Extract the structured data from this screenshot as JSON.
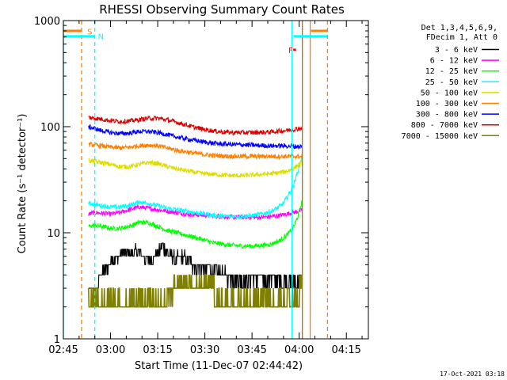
{
  "chart_data": {
    "type": "line",
    "title": "RHESSI Observing Summary Count Rates",
    "xlabel": "Start Time (11-Dec-07 02:44:42)",
    "ylabel": "Count Rate (s⁻¹ detector⁻¹)",
    "y_scale": "log",
    "ylim": [
      1,
      1000
    ],
    "xlim_minutes_after_0245": [
      0,
      97
    ],
    "x_ticks": [
      {
        "label": "02:45",
        "min": 0
      },
      {
        "label": "03:00",
        "min": 15
      },
      {
        "label": "03:15",
        "min": 30
      },
      {
        "label": "03:30",
        "min": 45
      },
      {
        "label": "03:45",
        "min": 60
      },
      {
        "label": "04:00",
        "min": 75
      },
      {
        "label": "04:15",
        "min": 90
      }
    ],
    "y_ticks": [
      {
        "label": "1",
        "value": 1
      },
      {
        "label": "10",
        "value": 10
      },
      {
        "label": "100",
        "value": 100
      },
      {
        "label": "1000",
        "value": 1000
      }
    ],
    "legend_header": [
      "Det 1,3,4,5,6,9,",
      "FDecim 1, Att 0"
    ],
    "legend_position": "right",
    "series": [
      {
        "name": "3 - 6 keV",
        "color": "#000000",
        "x": [
          8.0,
          10.5,
          11.5,
          14.5,
          15.5,
          17.0,
          19.0,
          21.0,
          23.5,
          25.0,
          27.0,
          29.5,
          31.5,
          33.5,
          35.5,
          38.0,
          40.0,
          42.0,
          45.0,
          48.0,
          51.0,
          54.0,
          57.0,
          60.0,
          63.0,
          66.0,
          69.0,
          72.0,
          74.0,
          75.0,
          76.0
        ],
        "values": [
          3,
          3,
          4,
          5,
          6,
          5.5,
          6.5,
          6.3,
          6.8,
          6.0,
          5.5,
          6.2,
          7.5,
          6.3,
          5.6,
          6.0,
          5.3,
          4.8,
          4.6,
          4.4,
          4.0,
          3.8,
          3.6,
          3.7,
          3.6,
          3.8,
          3.5,
          3.5,
          3.4,
          3.8,
          3.5
        ]
      },
      {
        "name": "6 - 12 keV",
        "color": "#ff00ff",
        "x": [
          8,
          10,
          12,
          15,
          18,
          21,
          24,
          27,
          30,
          33,
          36,
          39,
          42,
          45,
          48,
          51,
          54,
          57,
          60,
          63,
          66,
          69,
          71,
          73,
          75,
          76
        ],
        "values": [
          15,
          15.5,
          15.3,
          15,
          15.5,
          16.5,
          17.5,
          17,
          16.5,
          16,
          15.5,
          15,
          14.8,
          14.6,
          14.4,
          14.2,
          14,
          14,
          14,
          14,
          14.2,
          14.6,
          15,
          15.5,
          16,
          16.5
        ]
      },
      {
        "name": "12 - 25 keV",
        "color": "#00ff00",
        "x": [
          8,
          10,
          12,
          15,
          18,
          21,
          24,
          27,
          30,
          33,
          36,
          39,
          42,
          45,
          48,
          51,
          54,
          57,
          60,
          63,
          66,
          69,
          71,
          73,
          74.5,
          75.5,
          76
        ],
        "values": [
          11.5,
          11.8,
          11.5,
          11,
          11,
          11.5,
          12.5,
          12.5,
          11.5,
          10.5,
          10,
          9.5,
          9,
          8.5,
          8,
          7.8,
          7.6,
          7.5,
          7.5,
          7.6,
          7.8,
          8.5,
          9.5,
          11,
          14,
          18,
          20
        ]
      },
      {
        "name": "25 - 50 keV",
        "color": "#00ffff",
        "x": [
          8,
          10,
          12,
          15,
          18,
          21,
          24,
          27,
          30,
          33,
          36,
          39,
          42,
          45,
          48,
          51,
          54,
          57,
          60,
          63,
          66,
          68,
          70,
          72,
          73.5,
          75,
          76
        ],
        "values": [
          19,
          18.5,
          18,
          17.5,
          17.5,
          18,
          19.5,
          19,
          18,
          17,
          16.5,
          16,
          15.5,
          15,
          14.5,
          14.3,
          14.2,
          14.3,
          14.5,
          15,
          16,
          17,
          19,
          24,
          30,
          42,
          55
        ]
      },
      {
        "name": "50 - 100 keV",
        "color": "#dddd00",
        "x": [
          8,
          10,
          12,
          15,
          18,
          21,
          24,
          27,
          30,
          33,
          36,
          39,
          42,
          45,
          48,
          51,
          54,
          57,
          60,
          63,
          66,
          69,
          71,
          73,
          74.5,
          76
        ],
        "values": [
          48,
          47,
          46,
          44,
          42,
          42,
          44,
          46,
          45,
          42,
          40,
          38.5,
          37,
          36,
          35.5,
          35,
          34.5,
          34.5,
          35,
          35.5,
          36,
          37,
          38,
          40,
          43,
          46
        ]
      },
      {
        "name": "100 - 300 keV",
        "color": "#ff7f00",
        "x": [
          8,
          10,
          12,
          15,
          18,
          21,
          24,
          27,
          30,
          33,
          36,
          39,
          42,
          45,
          48,
          51,
          54,
          57,
          60,
          63,
          66,
          69,
          72,
          74,
          76
        ],
        "values": [
          68,
          67,
          66,
          64,
          63,
          64,
          66,
          67,
          66,
          63,
          60,
          58,
          56,
          54.5,
          53.5,
          53,
          52.5,
          52.5,
          52.5,
          52.5,
          52.5,
          52.5,
          52.5,
          52.5,
          52
        ]
      },
      {
        "name": "300 - 800 keV",
        "color": "#0000ff",
        "x": [
          8,
          10,
          12,
          15,
          18,
          21,
          24,
          27,
          30,
          33,
          36,
          39,
          42,
          45,
          48,
          51,
          54,
          57,
          60,
          63,
          66,
          69,
          72,
          74,
          76
        ],
        "values": [
          100,
          96,
          92,
          88,
          86,
          87,
          90,
          90,
          88,
          84,
          80,
          77,
          74,
          71.5,
          69.5,
          68.5,
          68,
          67.5,
          67,
          66.5,
          66,
          66,
          65.5,
          65,
          65
        ]
      },
      {
        "name": "800 - 7000 keV",
        "color": "#dd0000",
        "x": [
          8,
          10,
          12,
          15,
          18,
          21,
          24,
          27,
          30,
          33,
          36,
          39,
          42,
          45,
          48,
          51,
          54,
          57,
          60,
          63,
          66,
          69,
          72,
          74,
          76
        ],
        "values": [
          122,
          120,
          118,
          114,
          112,
          113,
          116,
          120,
          120,
          116,
          110,
          104,
          98,
          94,
          91,
          89,
          88,
          88,
          88,
          88.5,
          89,
          91,
          93,
          95,
          97
        ]
      },
      {
        "name": "7000 - 15000 keV",
        "color": "#7f7f00",
        "x": [
          8,
          30,
          33,
          48,
          50,
          55,
          60,
          66,
          70,
          74,
          75,
          76
        ],
        "values": [
          2,
          2,
          2.5,
          2.5,
          2,
          2,
          2,
          2,
          2,
          2,
          2.5,
          2.5
        ]
      }
    ],
    "annotations": [
      {
        "text": "S",
        "color": "#ff7f00",
        "x_min": 7.6,
        "y": 790
      },
      {
        "text": "N",
        "color": "#00ffff",
        "x_min": 11.0,
        "y": 715
      },
      {
        "text": "F",
        "color": "#ff0000",
        "x_min": 71.6,
        "y": 530
      }
    ],
    "vertical_lines": [
      {
        "x_min": 0.0,
        "color": "#00ffff",
        "style": "solid"
      },
      {
        "x_min": 5.8,
        "color": "#ff7f00",
        "style": "dashed"
      },
      {
        "x_min": 10.0,
        "color": "#00ffff",
        "style": "dashed"
      },
      {
        "x_min": 72.7,
        "color": "#00ffff",
        "style": "solid"
      },
      {
        "x_min": 76.0,
        "color": "#c07000",
        "style": "solid"
      },
      {
        "x_min": 78.5,
        "color": "#ff7f00",
        "style": "solid"
      },
      {
        "x_min": 84.0,
        "color": "#ff7f00",
        "style": "dashed"
      }
    ],
    "state_bars": [
      {
        "color": "#00ffff",
        "y": 710,
        "segments": [
          [
            0,
            10.0
          ],
          [
            73.2,
            84.0
          ]
        ]
      },
      {
        "color": "#ff7f00",
        "y": 800,
        "segments": [
          [
            0,
            5.8
          ],
          [
            78.8,
            84.0
          ]
        ]
      },
      {
        "color": "#ff0000",
        "y": 530,
        "segments": [
          [
            73.1,
            74.0
          ]
        ]
      }
    ],
    "timestamp": "17-Oct-2021 03:18"
  }
}
